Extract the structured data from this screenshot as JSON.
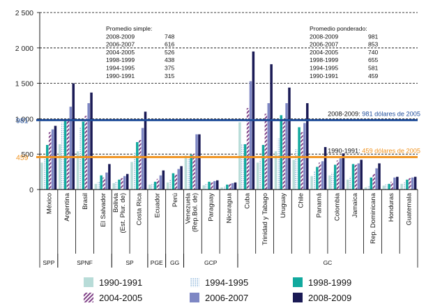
{
  "chart_data": {
    "type": "bar",
    "ylim": [
      0,
      2500
    ],
    "yticks": [
      0,
      500,
      1000,
      1500,
      2000,
      2500
    ],
    "ytick_labels": [
      "0",
      "500",
      "1 000",
      "1 500",
      "2 000",
      "2 500"
    ],
    "grid": "horizontal-dashed",
    "categories": [
      "México",
      "Argentina",
      "Brasil",
      "El Salvador",
      "Bolivia (Est. Plur. de)",
      "Costa Rica",
      "Ecuador",
      "Perú",
      "Venezuela (Rep.Bol. de)",
      "Paraguay",
      "Nicaragua",
      "Cuba",
      "Trinidad y Tabago",
      "Uruguay",
      "Chile",
      "Panamá",
      "Colombia",
      "Jamaica",
      "Rep. Dominicana",
      "Honduras",
      "Guatemala"
    ],
    "series": [
      {
        "name": "1990-1991",
        "color": "#b8dcd8",
        "pattern": "solid",
        "values": [
          380,
          640,
          540,
          80,
          90,
          390,
          70,
          100,
          480,
          60,
          30,
          950,
          380,
          540,
          420,
          190,
          200,
          140,
          30,
          55,
          80
        ]
      },
      {
        "name": "1994-1995",
        "color": "#6a9fd0",
        "pattern": "dots",
        "values": [
          450,
          950,
          880,
          110,
          110,
          530,
          90,
          140,
          460,
          80,
          40,
          640,
          420,
          720,
          570,
          260,
          240,
          180,
          60,
          70,
          100
        ]
      },
      {
        "name": "1998-1999",
        "color": "#11a99e",
        "pattern": "solid",
        "values": [
          630,
          990,
          960,
          200,
          140,
          670,
          110,
          230,
          490,
          110,
          70,
          640,
          630,
          1050,
          880,
          320,
          350,
          360,
          170,
          80,
          140
        ]
      },
      {
        "name": "2004-2005",
        "color": "#7f3f86",
        "pattern": "hatch",
        "values": [
          810,
          980,
          1040,
          170,
          160,
          700,
          150,
          210,
          500,
          100,
          80,
          1150,
          1070,
          970,
          810,
          380,
          410,
          350,
          220,
          110,
          160
        ]
      },
      {
        "name": "2006-2007",
        "color": "#7e87c4",
        "pattern": "solid",
        "values": [
          850,
          1170,
          1220,
          240,
          190,
          870,
          200,
          290,
          780,
          120,
          90,
          1530,
          1220,
          1220,
          940,
          400,
          440,
          370,
          300,
          170,
          170
        ]
      },
      {
        "name": "2008-2009",
        "color": "#1a1a55",
        "pattern": "solid",
        "values": [
          900,
          1500,
          1370,
          360,
          220,
          1100,
          270,
          330,
          780,
          130,
          100,
          1950,
          1770,
          1440,
          1220,
          600,
          510,
          420,
          370,
          180,
          180
        ]
      }
    ],
    "group_labels": [
      {
        "label": "SPP",
        "from": 0,
        "to": 0
      },
      {
        "label": "SPNF",
        "from": 1,
        "to": 3
      },
      {
        "label": "SP",
        "from": 4,
        "to": 5
      },
      {
        "label": "PGE",
        "from": 6,
        "to": 6
      },
      {
        "label": "GG",
        "from": 7,
        "to": 7
      },
      {
        "label": "GCP",
        "from": 8,
        "to": 10
      },
      {
        "label": "GC",
        "from": 11,
        "to": 20
      }
    ],
    "reference_lines": [
      {
        "value": 981,
        "axis_label": "981",
        "color": "#1f4d9a",
        "label_prefix": "2008-2009:",
        "label_colored": "981 dólares de 2005"
      },
      {
        "value": 459,
        "axis_label": "459",
        "color": "#f0921e",
        "label_prefix": "1990-1991:",
        "label_colored": "459 dólares de 2005"
      }
    ],
    "simple_box": {
      "title": "Promedio simple:",
      "rows": [
        [
          "2008-2009",
          "748"
        ],
        [
          "2006-2007",
          "616"
        ],
        [
          "2004-2005",
          "526"
        ],
        [
          "1998-1999",
          "438"
        ],
        [
          "1994-1995",
          "375"
        ],
        [
          "1990-1991",
          "315"
        ]
      ]
    },
    "weighted_box": {
      "title": "Promedio ponderado:",
      "rows": [
        [
          "2008-2009",
          "981"
        ],
        [
          "2006-2007",
          "853"
        ],
        [
          "2004-2005",
          "740"
        ],
        [
          "1998-1999",
          "655"
        ],
        [
          "1994-1995",
          "581"
        ],
        [
          "1990-1991",
          "459"
        ]
      ]
    },
    "legend_placement": "bottom"
  }
}
